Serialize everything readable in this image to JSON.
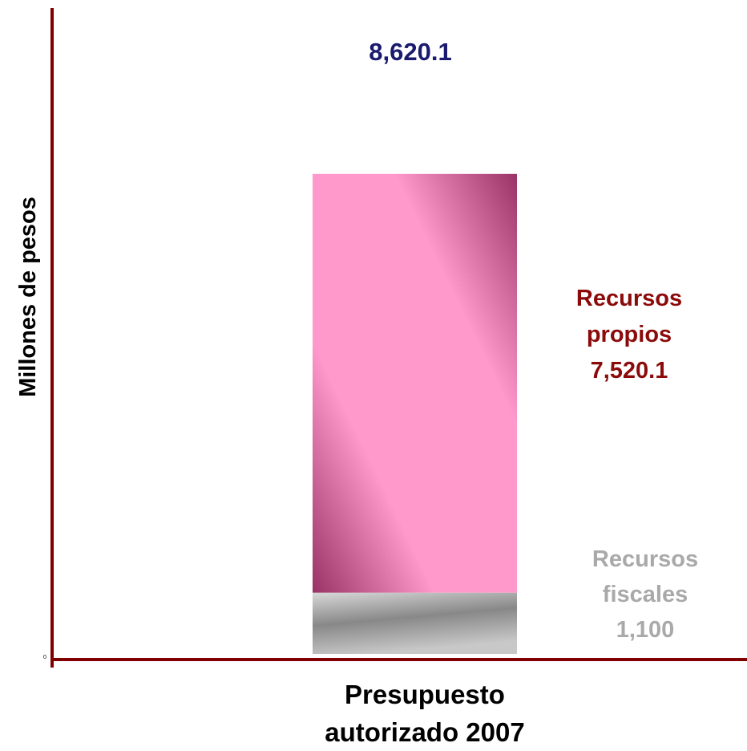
{
  "chart_data": {
    "type": "stacked-bar",
    "y_label": "Millones de pesos",
    "categories": [
      "Presupuesto autorizado 2007"
    ],
    "series": [
      {
        "name": "Recursos fiscales",
        "color": "#a0a0a0",
        "values": [
          1100
        ],
        "value_labels": [
          "1,100"
        ]
      },
      {
        "name": "Recursos propios",
        "color": "#ff99cc",
        "values": [
          7520.1
        ],
        "value_labels": [
          "7,520.1"
        ]
      }
    ],
    "total": 8620.1,
    "total_label": "8,620.1",
    "axis_color": "#800000",
    "ylim": [
      0,
      11600
    ],
    "yticks": [
      0
    ]
  }
}
